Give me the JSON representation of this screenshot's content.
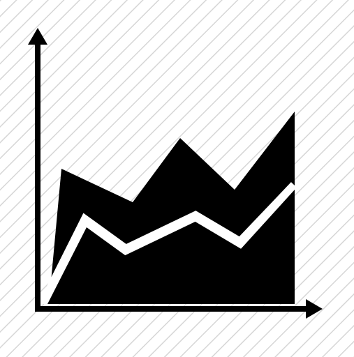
{
  "icon": {
    "name": "area-chart-icon",
    "background_pattern": "diagonal-stripes",
    "colors": {
      "background": "#ffffff",
      "stripes": "#d6d6d6",
      "foreground": "#000000",
      "separator": "#ffffff"
    }
  }
}
